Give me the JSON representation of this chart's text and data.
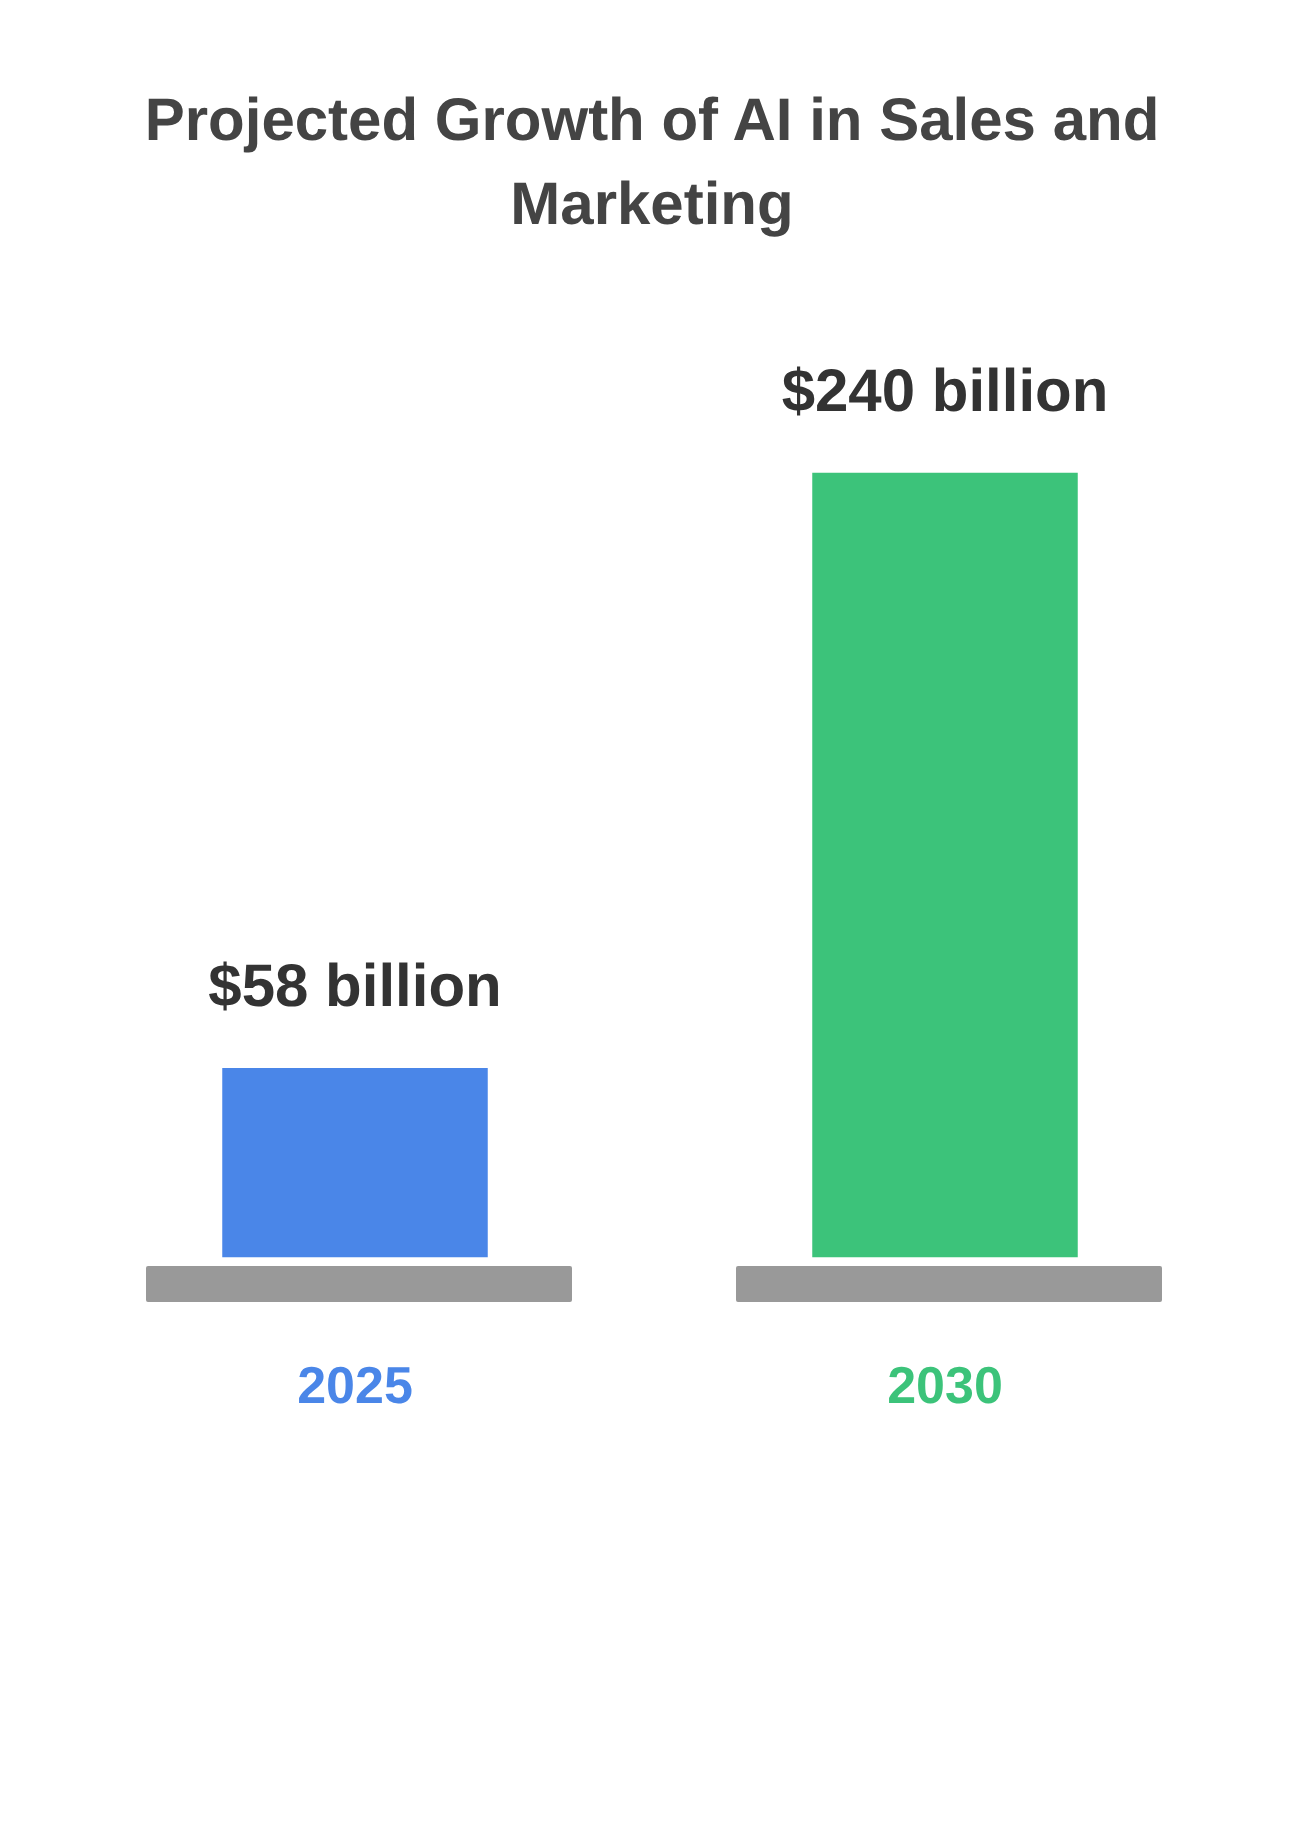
{
  "chart_data": {
    "type": "bar",
    "title": "Projected Growth of AI in Sales and Marketing",
    "categories": [
      "2025",
      "2030"
    ],
    "values": [
      58,
      240
    ],
    "colors": [
      "#4a86e8",
      "#3cc37a"
    ],
    "value_labels": [
      "$58 billion",
      "$240 billion"
    ],
    "tick_labels": "x",
    "grid": false,
    "legend": false
  }
}
